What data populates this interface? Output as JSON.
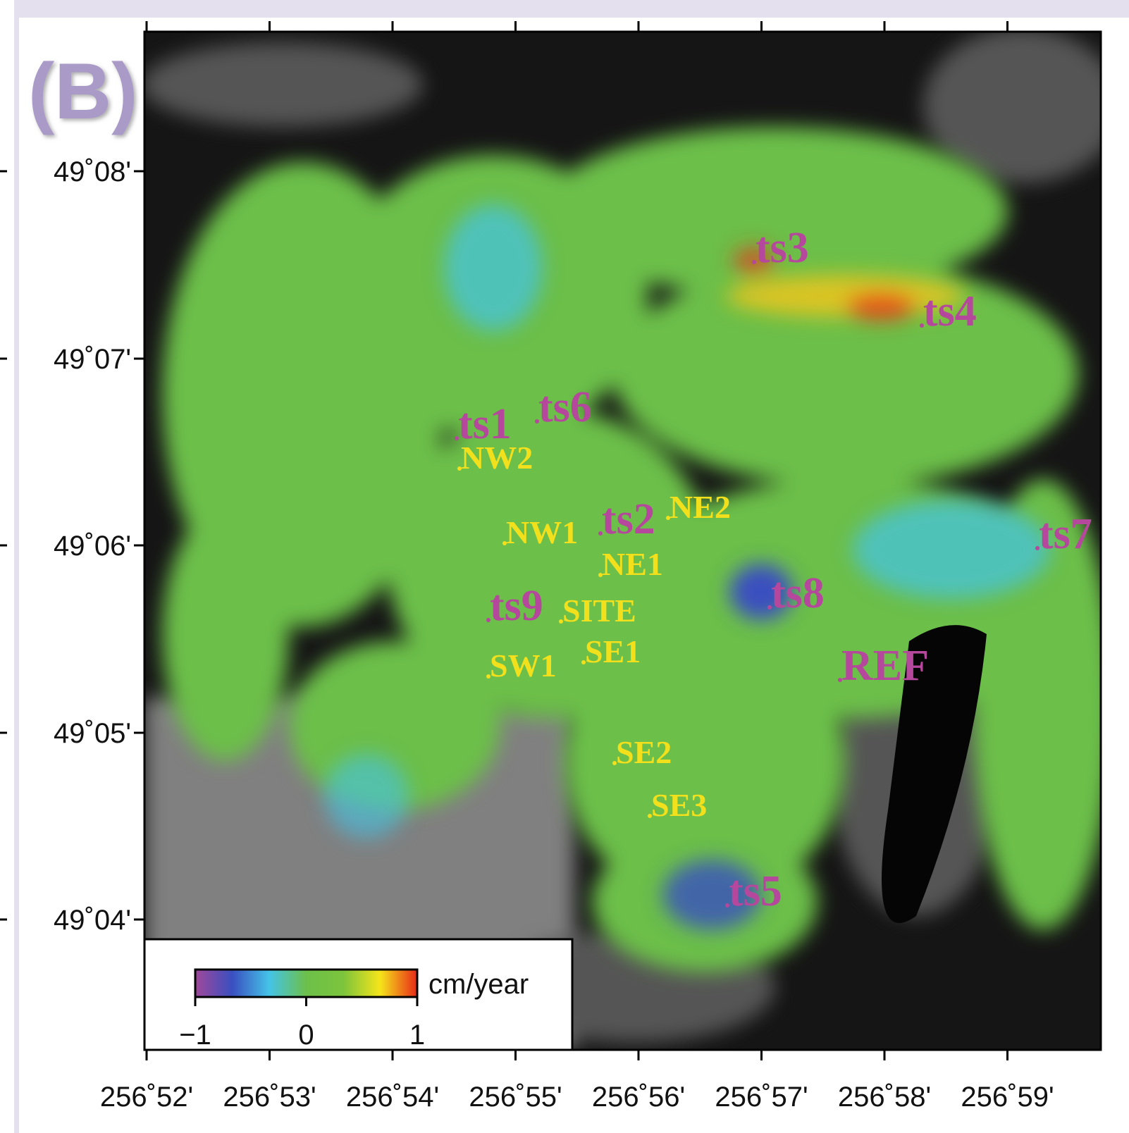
{
  "map": {
    "panel_label": "(B)",
    "lat_ticks": [
      "49˚08'",
      "49˚07'",
      "49˚06'",
      "49˚05'",
      "49˚04'"
    ],
    "lon_ticks": [
      "256˚52'",
      "256˚53'",
      "256˚54'",
      "256˚55'",
      "256˚56'",
      "256˚57'",
      "256˚58'",
      "256˚59'"
    ],
    "sites": [
      {
        "label": "ts3",
        "color": "#b5479c"
      },
      {
        "label": "ts4",
        "color": "#b5479c"
      },
      {
        "label": "ts1",
        "color": "#b5479c"
      },
      {
        "label": "ts6",
        "color": "#b5479c"
      },
      {
        "label": "NW2",
        "color": "#f2e01c"
      },
      {
        "label": "ts2",
        "color": "#b5479c"
      },
      {
        "label": "NE2",
        "color": "#f2e01c"
      },
      {
        "label": "NW1",
        "color": "#f2e01c"
      },
      {
        "label": "NE1",
        "color": "#f2e01c"
      },
      {
        "label": "ts9",
        "color": "#b5479c"
      },
      {
        "label": "SITE",
        "color": "#f2e01c"
      },
      {
        "label": "ts8",
        "color": "#b5479c"
      },
      {
        "label": "SE1",
        "color": "#f2e01c"
      },
      {
        "label": "SW1",
        "color": "#f2e01c"
      },
      {
        "label": "REF",
        "color": "#b5479c"
      },
      {
        "label": "ts7",
        "color": "#b5479c"
      },
      {
        "label": "SE2",
        "color": "#f2e01c"
      },
      {
        "label": "SE3",
        "color": "#f2e01c"
      },
      {
        "label": "ts5",
        "color": "#b5479c"
      }
    ],
    "colorbar": {
      "unit": "cm/year",
      "range": [
        -1,
        1
      ],
      "ticks": [
        {
          "value": -1,
          "label": "−1"
        },
        0,
        1
      ],
      "colors": [
        "#a0489a",
        "#3a4fc0",
        "#44c3e8",
        "#6cc04a",
        "#7cc43c",
        "#f5e51a",
        "#e82818"
      ]
    }
  }
}
